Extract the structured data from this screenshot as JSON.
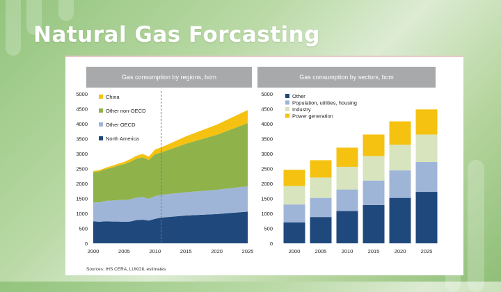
{
  "slide": {
    "title": "Natural Gas Forcasting"
  },
  "source": "Sources: IHS CERA, LUKOIL estimates",
  "colors": {
    "china": "#f5c211",
    "other_non_oecd": "#8fb24a",
    "other_oecd": "#9fb5d8",
    "north_america": "#1f497d",
    "other": "#1f497d",
    "population": "#9fb5d8",
    "industry": "#d7e4bd",
    "power": "#f5c211"
  },
  "chart_data": [
    {
      "type": "area",
      "title": "Gas consumption by regions, bcm",
      "x": [
        2000,
        2001,
        2002,
        2003,
        2004,
        2005,
        2006,
        2007,
        2008,
        2009,
        2010,
        2011,
        2015,
        2020,
        2025
      ],
      "xticks": [
        "2000",
        "2005",
        "2010",
        "2015",
        "2020",
        "2025"
      ],
      "yticks": [
        "0",
        "500",
        "1000",
        "1500",
        "2000",
        "2500",
        "3000",
        "3500",
        "4000",
        "4500",
        "5000"
      ],
      "ylim": [
        0,
        5000
      ],
      "forecast_start": 2011,
      "series": [
        {
          "name": "North America",
          "values": [
            740,
            720,
            740,
            730,
            730,
            720,
            730,
            780,
            790,
            760,
            820,
            860,
            930,
            980,
            1060
          ]
        },
        {
          "name": "Other OECD",
          "values": [
            630,
            650,
            680,
            700,
            720,
            730,
            740,
            750,
            760,
            730,
            760,
            760,
            780,
            810,
            850
          ]
        },
        {
          "name": "Other non-OECD",
          "values": [
            1010,
            1040,
            1060,
            1100,
            1150,
            1200,
            1260,
            1300,
            1330,
            1300,
            1400,
            1420,
            1620,
            1840,
            2110
          ]
        },
        {
          "name": "China",
          "values": [
            40,
            40,
            50,
            60,
            60,
            70,
            90,
            100,
            110,
            110,
            160,
            170,
            250,
            340,
            440
          ]
        }
      ],
      "legend_order": [
        "China",
        "Other non-OECD",
        "Other OECD",
        "North America"
      ]
    },
    {
      "type": "bar",
      "stacked": true,
      "title": "Gas consumption by sectors, bcm",
      "categories": [
        "2000",
        "2005",
        "2010",
        "2015",
        "2020",
        "2025"
      ],
      "yticks": [
        "0",
        "500",
        "1000",
        "1500",
        "2000",
        "2500",
        "3000",
        "3500",
        "4000",
        "4500",
        "5000"
      ],
      "ylim": [
        0,
        5000
      ],
      "series": [
        {
          "name": "Other",
          "values": [
            700,
            880,
            1080,
            1280,
            1520,
            1720
          ]
        },
        {
          "name": "Population, utilities, housing",
          "values": [
            600,
            640,
            720,
            820,
            920,
            1000
          ]
        },
        {
          "name": "Industry",
          "values": [
            620,
            680,
            760,
            820,
            860,
            920
          ]
        },
        {
          "name": "Power generation",
          "values": [
            540,
            580,
            640,
            720,
            780,
            840
          ]
        }
      ],
      "legend_order": [
        "Other",
        "Population, utilities, housing",
        "Industry",
        "Power generation"
      ]
    }
  ]
}
